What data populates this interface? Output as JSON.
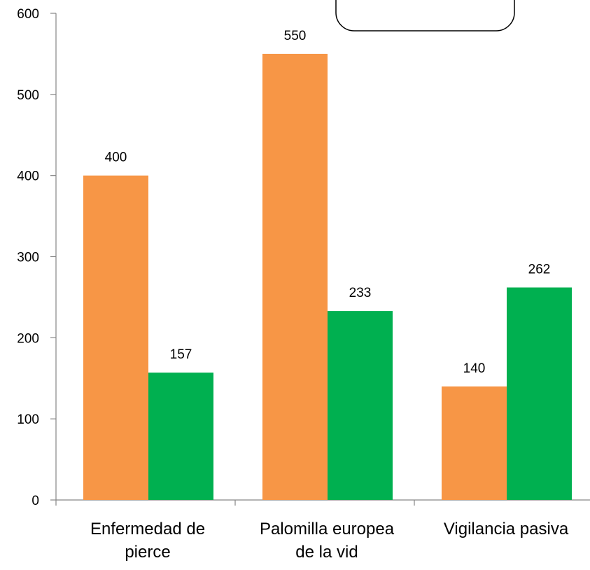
{
  "chart_data": {
    "type": "bar",
    "categories": [
      [
        "Enfermedad de",
        "pierce"
      ],
      [
        "Palomilla europea",
        "de la vid"
      ],
      [
        "Vigilancia pasiva"
      ]
    ],
    "series": [
      {
        "values": [
          400,
          550,
          140
        ],
        "color": "#F79646"
      },
      {
        "values": [
          157,
          233,
          262
        ],
        "color": "#00B050"
      }
    ],
    "ylim": [
      0,
      600
    ],
    "yticks": [
      0,
      100,
      200,
      300,
      400,
      500,
      600
    ],
    "grid": false,
    "data_labels": true
  }
}
